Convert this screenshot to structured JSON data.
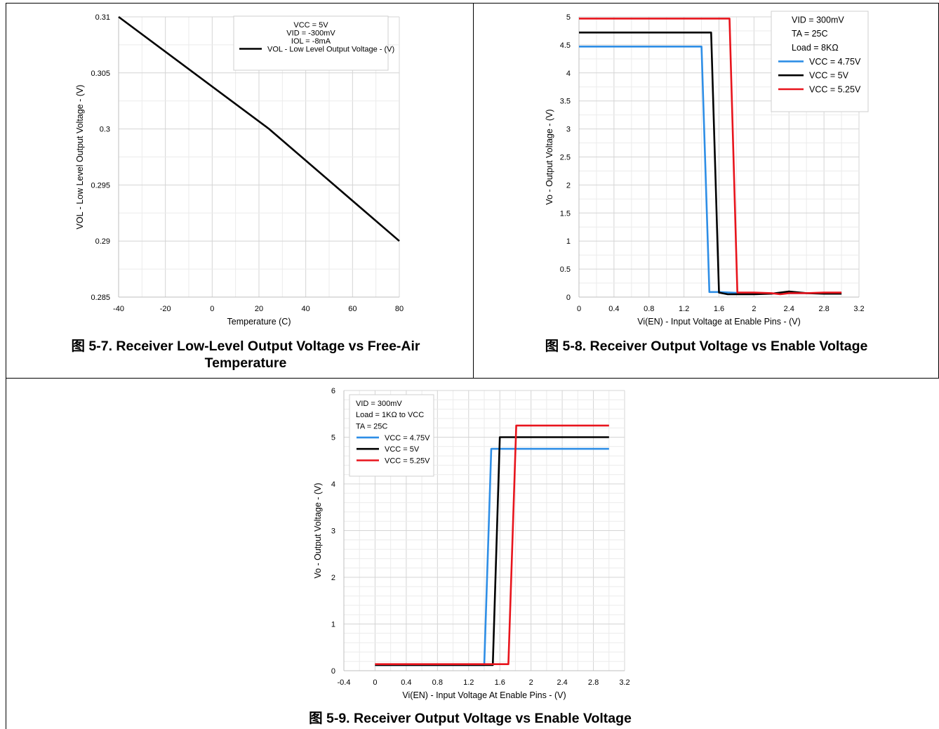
{
  "figures": [
    {
      "caption": "图 5-7. Receiver Low-Level Output Voltage vs Free-Air Temperature",
      "chart_data": {
        "type": "line",
        "xlabel": "Temperature (C)",
        "ylabel": "VOL - Low Level Output Voltage - (V)",
        "xlim": [
          -40,
          85
        ],
        "ylim": [
          0.285,
          0.31
        ],
        "xticks": [
          "-40",
          "-20",
          "0",
          "20",
          "40",
          "60",
          "80"
        ],
        "yticks": [
          "0.285",
          "0.29",
          "0.295",
          "0.3",
          "0.305",
          "0.31"
        ],
        "grid": true,
        "legend_position": "top-right",
        "legend_notes": [
          "VCC = 5V",
          "VID = -300mV",
          "IOL = -8mA"
        ],
        "series": [
          {
            "name": "VOL - Low Level Output Voltage - (V)",
            "color": "#000000",
            "points": [
              [
                -40,
                0.31
              ],
              [
                27,
                0.3
              ],
              [
                85,
                0.29
              ]
            ]
          }
        ]
      }
    },
    {
      "caption": "图 5-8. Receiver Output Voltage vs Enable Voltage",
      "chart_data": {
        "type": "line",
        "xlabel": "Vi(EN) - Input Voltage at Enable Pins - (V)",
        "ylabel": "Vo - Output Voltage - (V)",
        "xlim": [
          0,
          3.2
        ],
        "ylim": [
          0,
          5
        ],
        "xticks": [
          "0",
          "0.4",
          "0.8",
          "1.2",
          "1.6",
          "2",
          "2.4",
          "2.8",
          "3.2"
        ],
        "yticks": [
          "0",
          "0.5",
          "1",
          "1.5",
          "2",
          "2.5",
          "3",
          "3.5",
          "4",
          "4.5",
          "5"
        ],
        "grid": true,
        "legend_position": "top-right",
        "legend_notes": [
          "VID = 300mV",
          "TA = 25C",
          "Load = 8KΩ"
        ],
        "series": [
          {
            "name": "VCC = 4.75V",
            "color": "#2e8ee6",
            "points": [
              [
                0,
                4.47
              ],
              [
                1.4,
                4.47
              ],
              [
                1.49,
                0.09
              ],
              [
                1.6,
                0.09
              ],
              [
                2.0,
                0.06
              ],
              [
                2.4,
                0.07
              ],
              [
                2.8,
                0.07
              ],
              [
                3.0,
                0.07
              ]
            ]
          },
          {
            "name": "VCC = 5V",
            "color": "#000000",
            "points": [
              [
                0,
                4.72
              ],
              [
                1.51,
                4.72
              ],
              [
                1.6,
                0.08
              ],
              [
                1.7,
                0.05
              ],
              [
                2.0,
                0.05
              ],
              [
                2.2,
                0.06
              ],
              [
                2.4,
                0.1
              ],
              [
                2.6,
                0.07
              ],
              [
                2.8,
                0.06
              ],
              [
                3.0,
                0.06
              ]
            ]
          },
          {
            "name": "VCC = 5.25V",
            "color": "#e8141c",
            "points": [
              [
                0,
                4.97
              ],
              [
                1.72,
                4.97
              ],
              [
                1.81,
                0.08
              ],
              [
                2.0,
                0.08
              ],
              [
                2.2,
                0.07
              ],
              [
                2.3,
                0.05
              ],
              [
                2.4,
                0.07
              ],
              [
                2.6,
                0.07
              ],
              [
                2.8,
                0.08
              ],
              [
                3.0,
                0.08
              ]
            ]
          }
        ]
      }
    },
    {
      "caption": "图 5-9. Receiver Output Voltage vs Enable Voltage",
      "chart_data": {
        "type": "line",
        "xlabel": "Vi(EN) - Input Voltage At Enable Pins - (V)",
        "ylabel": "Vo - Output Voltage - (V)",
        "xlim": [
          -0.4,
          3.2
        ],
        "ylim": [
          0,
          6
        ],
        "xticks": [
          "-0.4",
          "0",
          "0.4",
          "0.8",
          "1.2",
          "1.6",
          "2",
          "2.4",
          "2.8",
          "3.2"
        ],
        "yticks": [
          "0",
          "1",
          "2",
          "3",
          "4",
          "5",
          "6"
        ],
        "grid": true,
        "legend_position": "top-left",
        "legend_notes": [
          "VID = 300mV",
          "Load = 1KΩ to VCC",
          "TA = 25C"
        ],
        "series": [
          {
            "name": "VCC = 4.75V",
            "color": "#2e8ee6",
            "points": [
              [
                0,
                0.12
              ],
              [
                1.4,
                0.12
              ],
              [
                1.49,
                4.75
              ],
              [
                2.0,
                4.75
              ],
              [
                2.4,
                4.75
              ],
              [
                3.0,
                4.75
              ]
            ]
          },
          {
            "name": "VCC = 5V",
            "color": "#000000",
            "points": [
              [
                0,
                0.12
              ],
              [
                1.51,
                0.12
              ],
              [
                1.6,
                5.0
              ],
              [
                2.0,
                5.0
              ],
              [
                2.4,
                5.0
              ],
              [
                3.0,
                5.0
              ]
            ]
          },
          {
            "name": "VCC = 5.25V",
            "color": "#e8141c",
            "points": [
              [
                0,
                0.14
              ],
              [
                1.42,
                0.14
              ],
              [
                1.52,
                0.14
              ],
              [
                1.71,
                0.14
              ],
              [
                1.81,
                5.25
              ],
              [
                2.0,
                5.25
              ],
              [
                2.4,
                5.25
              ],
              [
                3.0,
                5.25
              ]
            ]
          }
        ]
      }
    }
  ]
}
